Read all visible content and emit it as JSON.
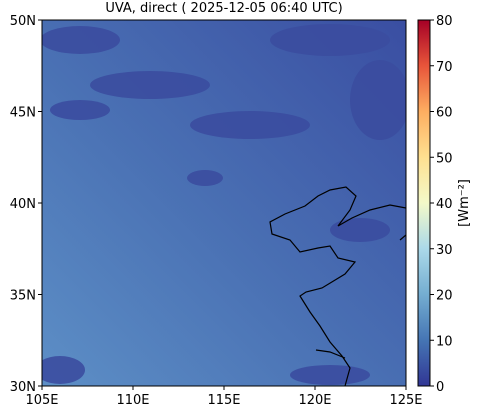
{
  "chart_data": {
    "type": "heatmap",
    "title": "UVA, direct ( 2025-12-05 06:40 UTC)",
    "xlim": [
      105,
      125
    ],
    "xticks": [
      {
        "value": 105,
        "label": "105E"
      },
      {
        "value": 110,
        "label": "110E"
      },
      {
        "value": 115,
        "label": "115E"
      },
      {
        "value": 120,
        "label": "120E"
      },
      {
        "value": 125,
        "label": "125E"
      }
    ],
    "ylim": [
      30,
      50
    ],
    "yticks": [
      {
        "value": 30,
        "label": "30N"
      },
      {
        "value": 35,
        "label": "35N"
      },
      {
        "value": 40,
        "label": "40N"
      },
      {
        "value": 45,
        "label": "45N"
      },
      {
        "value": 50,
        "label": "50N"
      }
    ],
    "colorbar": {
      "label": "[Wm⁻²]",
      "lim": [
        0,
        80
      ],
      "ticks": [
        0,
        10,
        20,
        30,
        40,
        50,
        60,
        70,
        80
      ],
      "colormap": [
        "#313695",
        "#4575b4",
        "#74add1",
        "#abd9e9",
        "#f3f9c9",
        "#fee090",
        "#fdae61",
        "#e8553a",
        "#a50026"
      ]
    }
  }
}
